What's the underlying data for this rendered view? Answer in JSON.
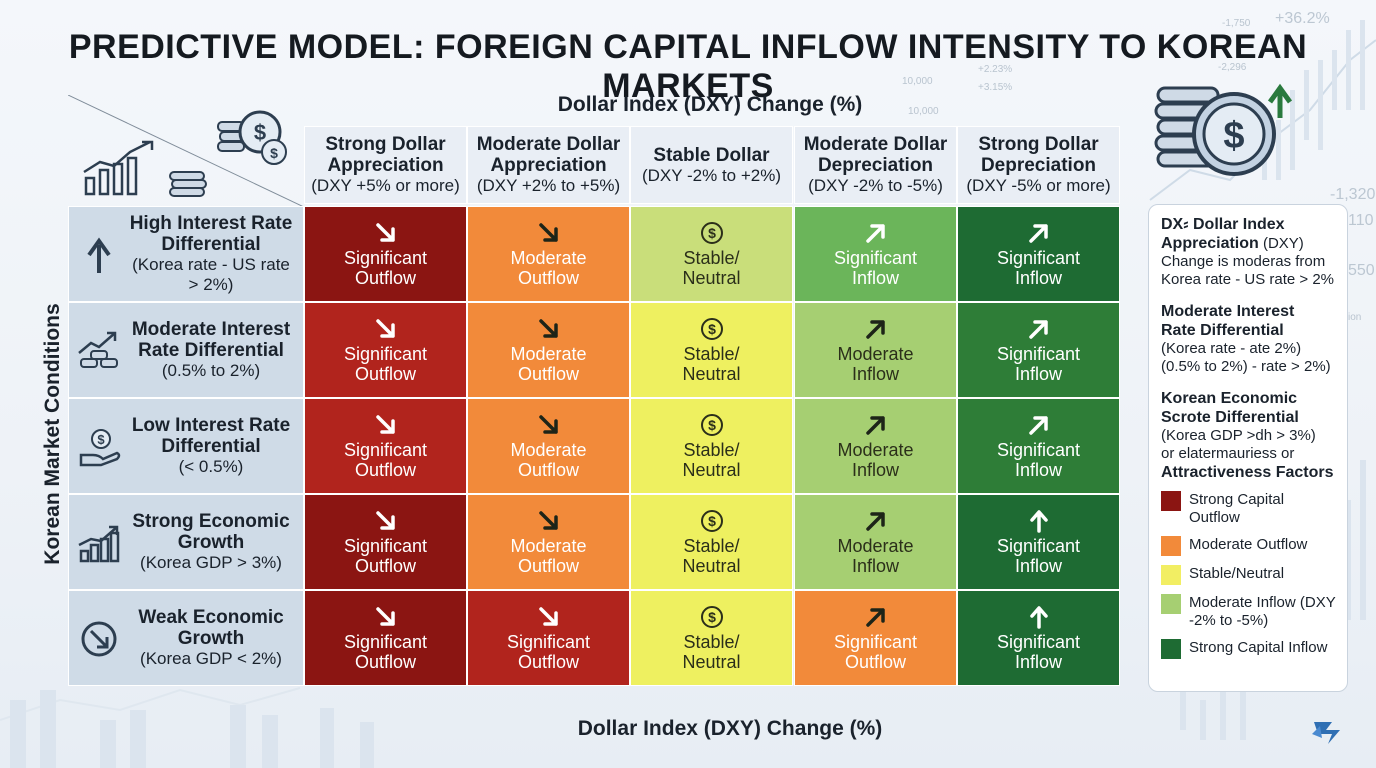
{
  "title": "PREDICTIVE MODEL: FOREIGN CAPITAL INFLOW INTENSITY TO KOREAN MARKETS",
  "axes": {
    "top": "Dollar Index (DXY) Change (%)",
    "bottom": "Dollar Index (DXY) Change (%)",
    "side": "Korean Market Conditions"
  },
  "background_numbers": [
    "-1,750",
    "+36.2%",
    "-2,296",
    "+2.23%",
    "+3.15%",
    "10,000",
    "10,000",
    "-1,320",
    "110",
    "550",
    "ion"
  ],
  "columns": [
    {
      "title": "Strong Dollar Appreciation",
      "sub": "(DXY +5% or more)"
    },
    {
      "title": "Moderate Dollar Appreciation",
      "sub": "(DXY +2% to +5%)"
    },
    {
      "title": "Stable Dollar",
      "sub": "(DXY -2% to +2%)"
    },
    {
      "title": "Moderate Dollar Depreciation",
      "sub": "(DXY -2% to -5%)"
    },
    {
      "title": "Strong Dollar Depreciation",
      "sub": "(DXY -5% or more)"
    }
  ],
  "rows": [
    {
      "title": "High Interest Rate Differential",
      "sub": "(Korea rate - US rate > 2%)",
      "icon": "up-arrow-icon"
    },
    {
      "title": "Moderate Interest Rate Differential",
      "sub": "(0.5% to 2%)",
      "icon": "growth-coins-icon"
    },
    {
      "title": "Low Interest Rate Differential",
      "sub": "(< 0.5%)",
      "icon": "hand-dollar-icon"
    },
    {
      "title": "Strong Economic Growth",
      "sub": "(Korea GDP > 3%)",
      "icon": "bar-growth-icon"
    },
    {
      "title": "Weak Economic Growth",
      "sub": "(Korea GDP < 2%)",
      "icon": "down-circle-icon"
    }
  ],
  "cells": [
    [
      {
        "label": "Significant Outflow",
        "color": "#8b1512",
        "arrow": "down-right"
      },
      {
        "label": "Moderate Outflow",
        "color": "#f28a3a",
        "arrow": "down-right"
      },
      {
        "label": "Stable/ Neutral",
        "color": "#c9de7a",
        "arrow": "dollar"
      },
      {
        "label": "Significant Inflow",
        "color": "#6bb55a",
        "arrow": "up-right"
      },
      {
        "label": "Significant Inflow",
        "color": "#1e6b33",
        "arrow": "up-right"
      }
    ],
    [
      {
        "label": "Significant Outflow",
        "color": "#b1241d",
        "arrow": "down-right"
      },
      {
        "label": "Moderate Outflow",
        "color": "#f28a3a",
        "arrow": "down-right"
      },
      {
        "label": "Stable/ Neutral",
        "color": "#eef060",
        "arrow": "dollar"
      },
      {
        "label": "Moderate Inflow",
        "color": "#a6cf72",
        "arrow": "up-right"
      },
      {
        "label": "Significant Inflow",
        "color": "#2e7d37",
        "arrow": "up-right"
      }
    ],
    [
      {
        "label": "Significant Outflow",
        "color": "#b1241d",
        "arrow": "down-right"
      },
      {
        "label": "Moderate Outflow",
        "color": "#f28a3a",
        "arrow": "down-right"
      },
      {
        "label": "Stable/ Neutral",
        "color": "#eef060",
        "arrow": "dollar"
      },
      {
        "label": "Moderate Inflow",
        "color": "#a6cf72",
        "arrow": "up-right"
      },
      {
        "label": "Significant Inflow",
        "color": "#2e7d37",
        "arrow": "up-right"
      }
    ],
    [
      {
        "label": "Significant Outflow",
        "color": "#8b1512",
        "arrow": "down-right"
      },
      {
        "label": "Moderate Outflow",
        "color": "#f28a3a",
        "arrow": "down-right"
      },
      {
        "label": "Stable/ Neutral",
        "color": "#eef060",
        "arrow": "dollar"
      },
      {
        "label": "Moderate Inflow",
        "color": "#a6cf72",
        "arrow": "up-right"
      },
      {
        "label": "Significant Inflow",
        "color": "#1e6b33",
        "arrow": "up"
      }
    ],
    [
      {
        "label": "Significant Outflow",
        "color": "#8b1512",
        "arrow": "down-right"
      },
      {
        "label": "Significant Outflow",
        "color": "#b1241d",
        "arrow": "down-right"
      },
      {
        "label": "Stable/ Neutral",
        "color": "#eef060",
        "arrow": "dollar"
      },
      {
        "label": "Significant Outflow",
        "color": "#f28a3a",
        "arrow": "up-right"
      },
      {
        "label": "Significant Inflow",
        "color": "#1e6b33",
        "arrow": "up"
      }
    ]
  ],
  "legend": {
    "blocks": [
      {
        "bold1": "DX⸗ Dollar Index",
        "bold2": "Appreciation",
        "bold2_suffix": " (DXY)",
        "lines": [
          "Change is moderas from",
          "Korea rate - US rate > 2%"
        ]
      },
      {
        "bold": [
          "Moderate Interest",
          "Rate Differential"
        ],
        "lines": [
          "(Korea rate - ate 2%)",
          "(0.5% to 2%) - rate > 2%)"
        ]
      },
      {
        "bold": [
          "Korean Economic",
          "Scrote Differential"
        ],
        "lines": [
          "(Korea GDP >dh > 3%)",
          "or elatermauriess or"
        ],
        "bold_after": "Attractiveness Factors"
      }
    ],
    "items": [
      {
        "label": "Strong Capital Outflow",
        "color": "#8b1512"
      },
      {
        "label": "Moderate Outflow",
        "color": "#f28a3a"
      },
      {
        "label": "Stable/Neutral",
        "color": "#f2ee63"
      },
      {
        "label": "Moderate Inflow (DXY -2% to -5%)",
        "color": "#a6cf72"
      },
      {
        "label": "Strong Capital Inflow",
        "color": "#1e6b33"
      }
    ]
  }
}
